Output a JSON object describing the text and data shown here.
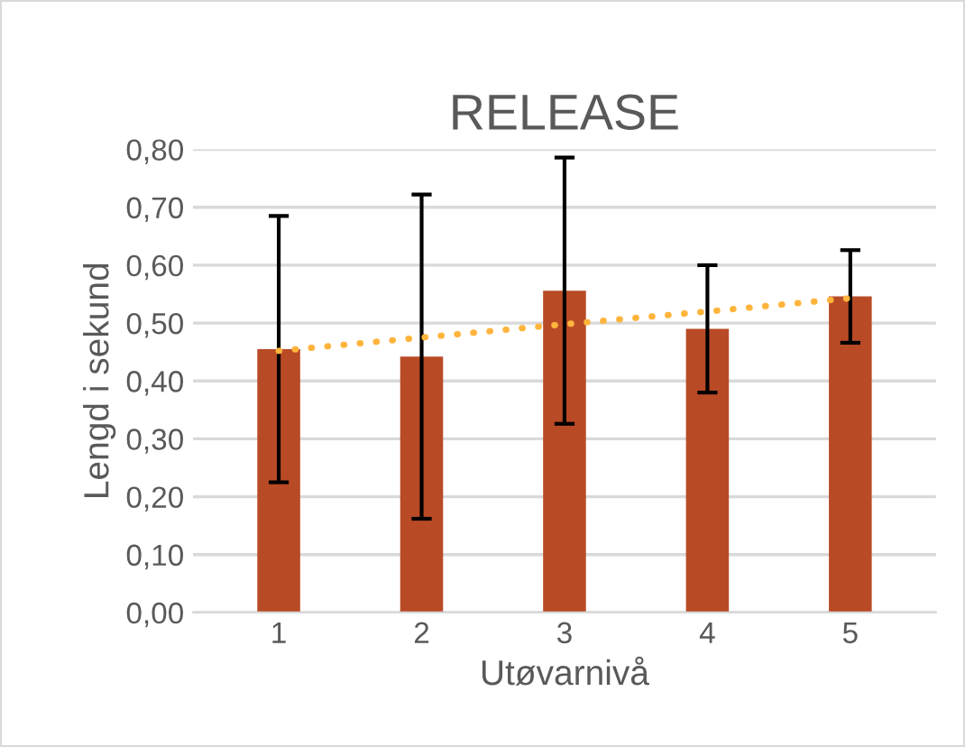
{
  "chart_data": {
    "type": "bar",
    "title": "RELEASE",
    "xlabel": "Utøvarnivå",
    "ylabel": "Lengd i sekund",
    "categories": [
      "1",
      "2",
      "3",
      "4",
      "5"
    ],
    "series": [
      {
        "color": "#b94a26",
        "values": [
          0.455,
          0.442,
          0.556,
          0.49,
          0.546
        ],
        "errors": [
          0.23,
          0.28,
          0.23,
          0.11,
          0.08
        ]
      },
      {
        "type": "line",
        "color": "#ffb43c",
        "line_style": "dotted",
        "values": [
          0.452,
          0.475,
          0.498,
          0.52,
          0.543
        ]
      }
    ],
    "ylim": [
      0,
      0.8
    ],
    "yticks": [
      {
        "value": 0,
        "label": "0,00"
      },
      {
        "value": 0.1,
        "label": "0,10"
      },
      {
        "value": 0.2,
        "label": "0,20"
      },
      {
        "value": 0.3,
        "label": "0,30"
      },
      {
        "value": 0.4,
        "label": "0,40"
      },
      {
        "value": 0.5,
        "label": "0,50"
      },
      {
        "value": 0.6,
        "label": "0,60"
      },
      {
        "value": 0.7,
        "label": "0,70"
      },
      {
        "value": 0.8,
        "label": "0,80"
      }
    ],
    "grid": "y",
    "legend": false
  }
}
